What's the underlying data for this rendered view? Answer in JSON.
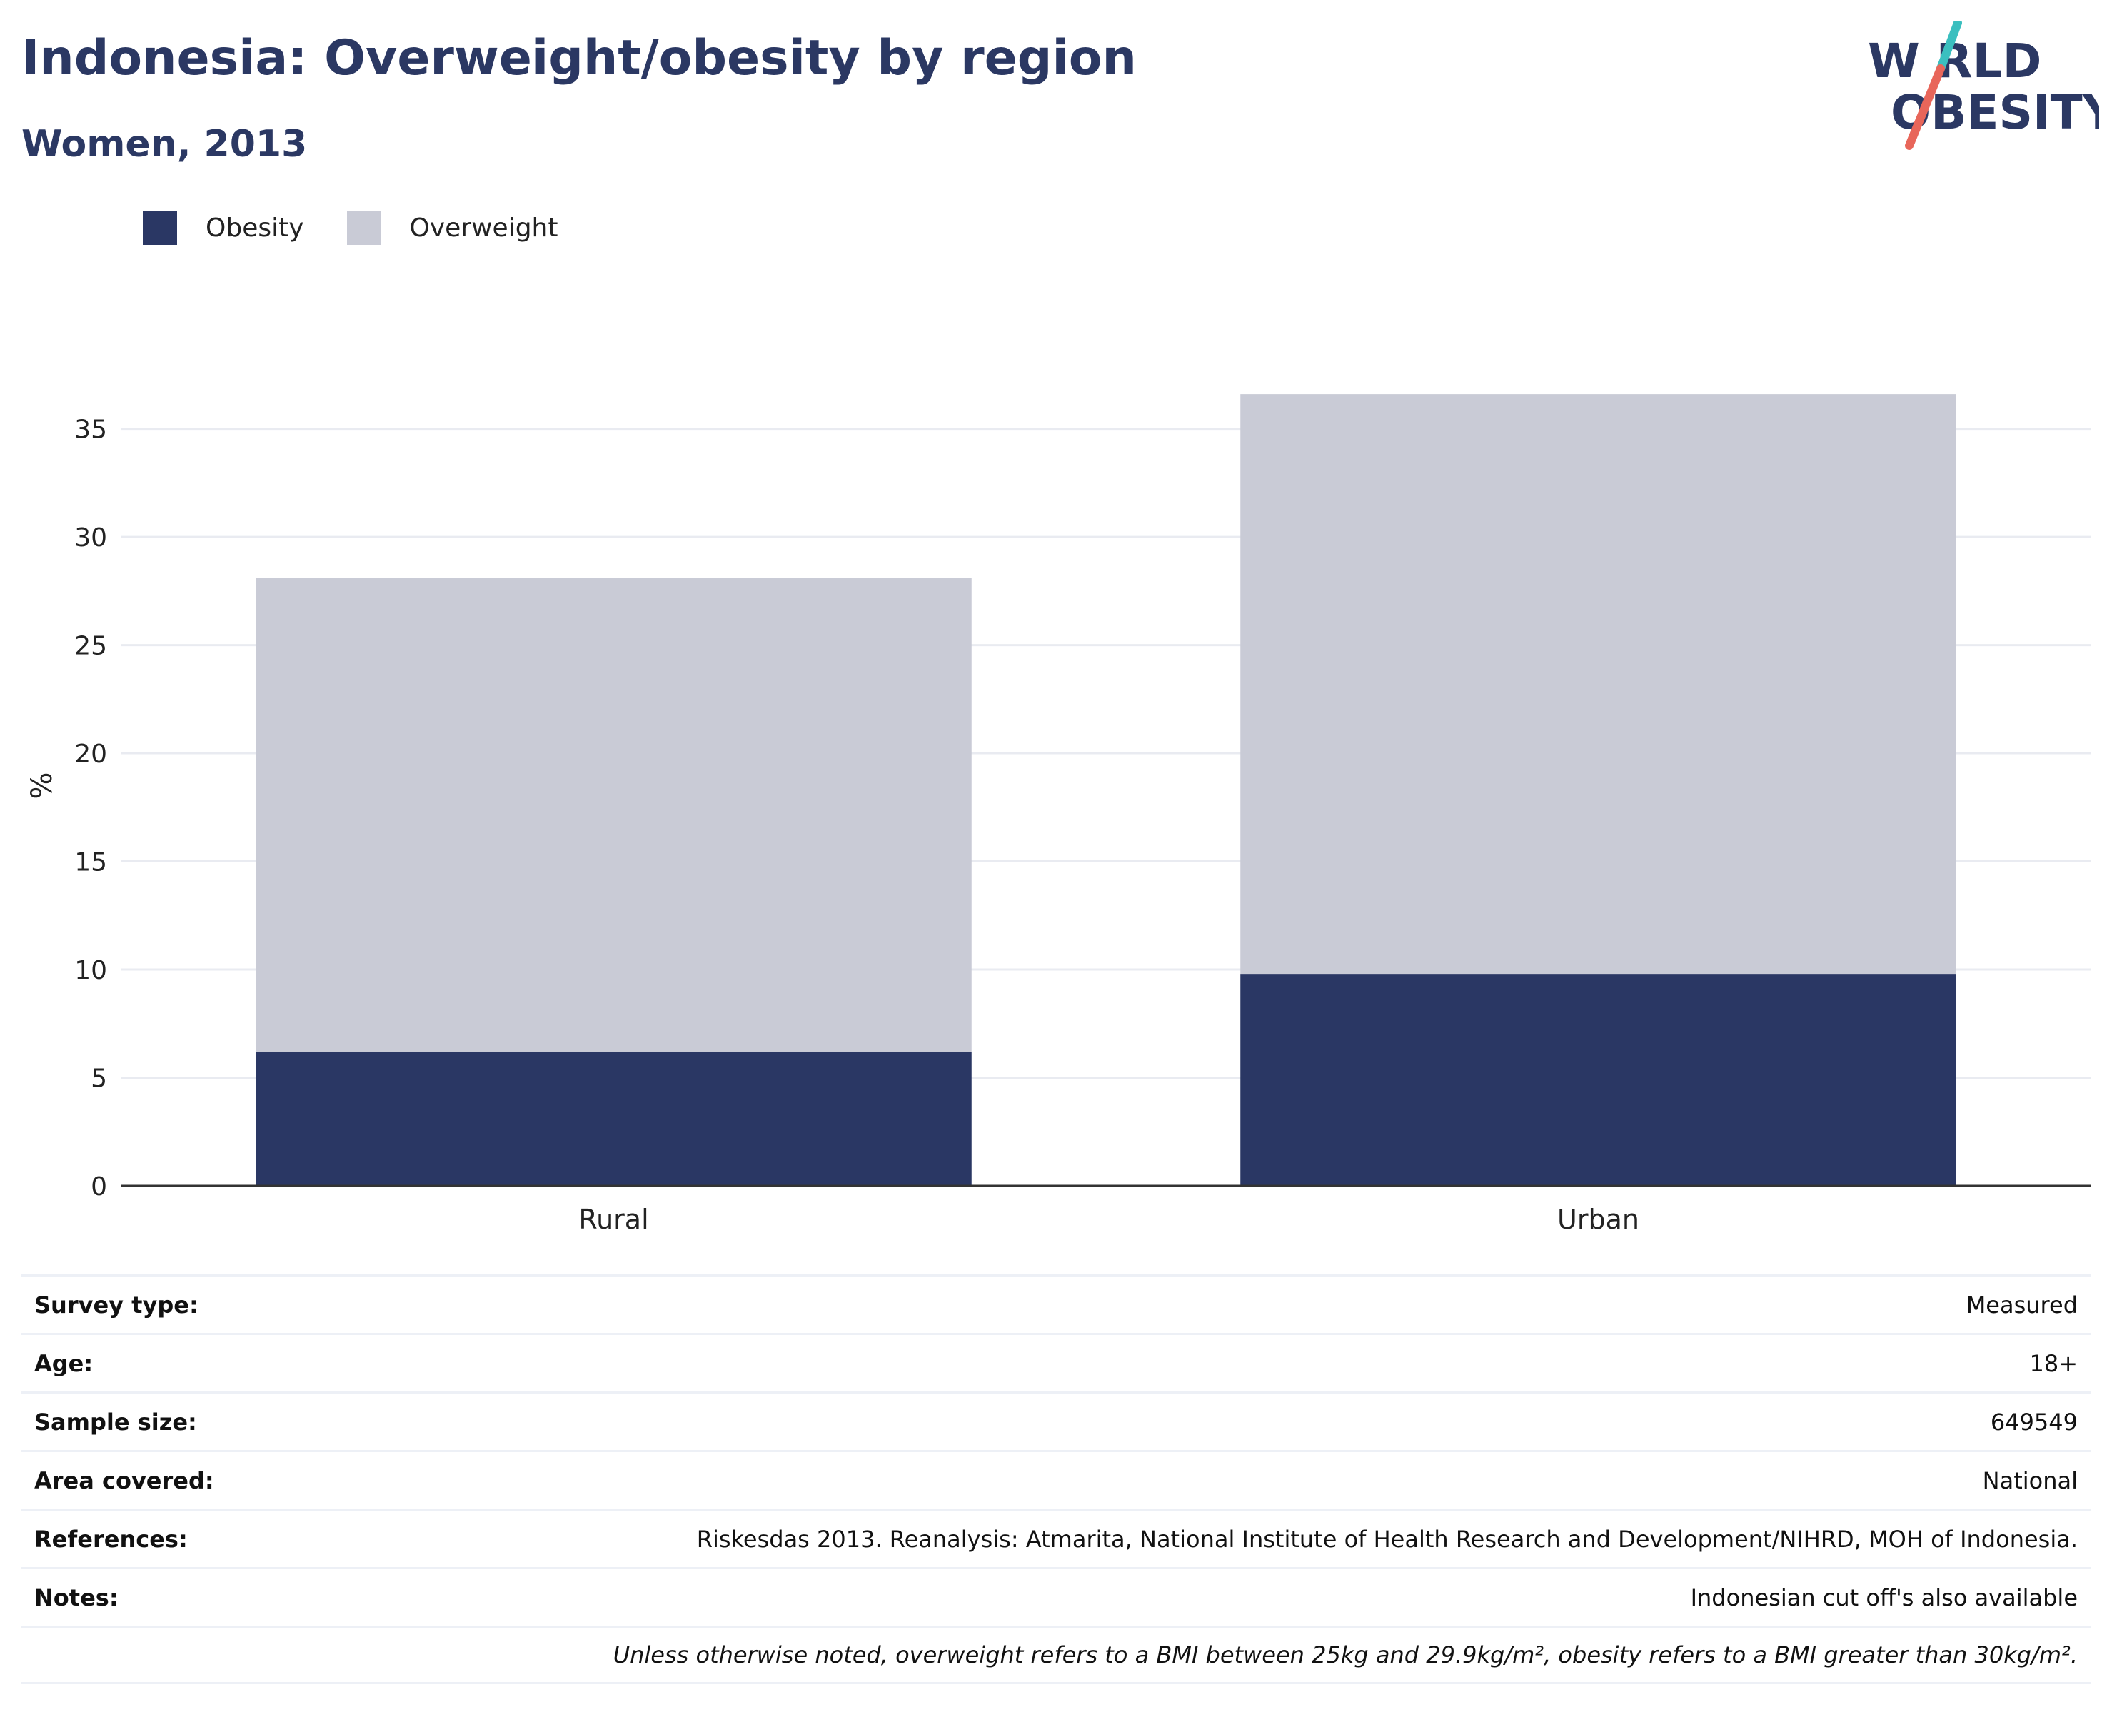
{
  "header": {
    "title": "Indonesia: Overweight/obesity by region",
    "subtitle": "Women, 2013"
  },
  "logo": {
    "line1": "W RLD",
    "line2": "OBESITY",
    "name": "world-obesity-logo"
  },
  "colors": {
    "obesity": "#2a3764",
    "overweight": "#c9cbd6",
    "title": "#2b3863",
    "grid": "#e9ebf1",
    "axis": "#333333"
  },
  "chart_data": {
    "type": "bar",
    "stacked": true,
    "categories": [
      "Rural",
      "Urban"
    ],
    "series": [
      {
        "name": "Obesity",
        "values": [
          6.2,
          9.8
        ]
      },
      {
        "name": "Overweight",
        "values": [
          21.9,
          26.8
        ]
      }
    ],
    "ylabel": "%",
    "ylim": [
      0,
      37
    ],
    "yticks": [
      0,
      5,
      10,
      15,
      20,
      25,
      30,
      35
    ],
    "grid": true,
    "legend": "top-left"
  },
  "info": [
    {
      "key": "Survey type:",
      "value": "Measured"
    },
    {
      "key": "Age:",
      "value": "18+"
    },
    {
      "key": "Sample size:",
      "value": "649549"
    },
    {
      "key": "Area covered:",
      "value": "National"
    },
    {
      "key": "References:",
      "value": "Riskesdas 2013. Reanalysis: Atmarita, National Institute of Health Research and Development/NIHRD, MOH of Indonesia."
    },
    {
      "key": "Notes:",
      "value": "Indonesian cut off's also available"
    }
  ],
  "footnote": "Unless otherwise noted, overweight refers to a BMI between 25kg and 29.9kg/m², obesity refers to a BMI greater than 30kg/m²."
}
